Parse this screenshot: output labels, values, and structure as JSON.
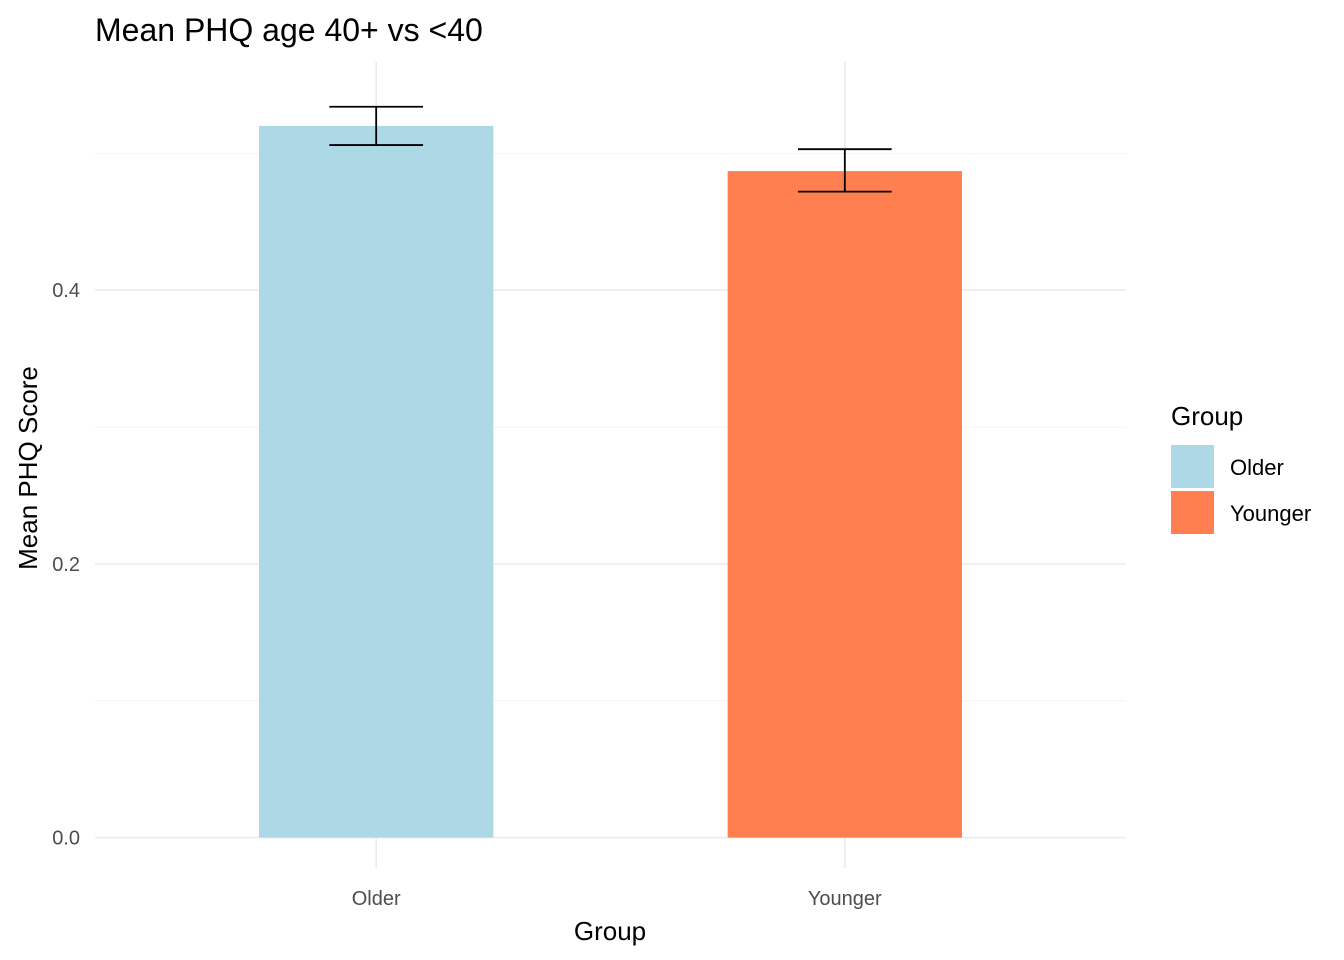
{
  "chart_data": {
    "type": "bar",
    "title": "Mean PHQ age 40+ vs <40",
    "xlabel": "Group",
    "ylabel": "Mean PHQ Score",
    "categories": [
      "Older",
      "Younger"
    ],
    "values": [
      0.52,
      0.487
    ],
    "error_low": [
      0.506,
      0.472
    ],
    "error_high": [
      0.534,
      0.503
    ],
    "ylim": [
      -0.0222,
      0.5667
    ],
    "y_ticks": [
      0.0,
      0.2,
      0.4
    ],
    "y_tick_labels": [
      "0.0",
      "0.2",
      "0.4"
    ],
    "y_minor_ticks": [
      0.1,
      0.3,
      0.5
    ],
    "grid": true,
    "legend": {
      "title": "Group",
      "position": "right",
      "entries": [
        "Older",
        "Younger"
      ]
    },
    "colors": {
      "Older": "#add8e6",
      "Younger": "#ff7f50"
    }
  }
}
